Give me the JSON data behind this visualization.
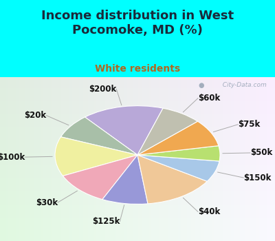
{
  "title": "Income distribution in West\nPocomoke, MD (%)",
  "subtitle": "White residents",
  "title_color": "#1a2a3a",
  "subtitle_color": "#b06820",
  "bg_cyan": "#00ffff",
  "bg_chart_topleft": "#d8ede0",
  "bg_chart_center": "#f0f8f0",
  "bg_chart_right": "#e8f4f8",
  "labels": [
    "$200k",
    "$20k",
    "$100k",
    "$30k",
    "$125k",
    "$40k",
    "$150k",
    "$50k",
    "$75k",
    "$60k"
  ],
  "values": [
    16,
    8,
    13,
    11,
    9,
    14,
    7,
    5,
    9,
    8
  ],
  "colors": [
    "#b8a8d8",
    "#a8bfa8",
    "#f0f0a0",
    "#f0a8b8",
    "#9898d8",
    "#f0c898",
    "#a8c8e8",
    "#b8e070",
    "#f0a850",
    "#c0c0b0"
  ],
  "label_fontsize": 8.5,
  "title_fontsize": 13,
  "subtitle_fontsize": 10,
  "watermark": "City-Data.com",
  "startangle": 72
}
